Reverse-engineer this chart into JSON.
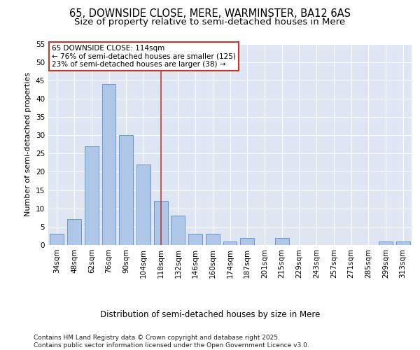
{
  "title1": "65, DOWNSIDE CLOSE, MERE, WARMINSTER, BA12 6AS",
  "title2": "Size of property relative to semi-detached houses in Mere",
  "xlabel": "Distribution of semi-detached houses by size in Mere",
  "ylabel": "Number of semi-detached properties",
  "categories": [
    "34sqm",
    "48sqm",
    "62sqm",
    "76sqm",
    "90sqm",
    "104sqm",
    "118sqm",
    "132sqm",
    "146sqm",
    "160sqm",
    "174sqm",
    "187sqm",
    "201sqm",
    "215sqm",
    "229sqm",
    "243sqm",
    "257sqm",
    "271sqm",
    "285sqm",
    "299sqm",
    "313sqm"
  ],
  "values": [
    3,
    7,
    27,
    44,
    30,
    22,
    12,
    8,
    3,
    3,
    1,
    2,
    0,
    2,
    0,
    0,
    0,
    0,
    0,
    1,
    1
  ],
  "bar_color": "#aec6e8",
  "bar_edge_color": "#5b8dc8",
  "bar_width": 0.8,
  "vline_x": 6,
  "vline_color": "#c0392b",
  "annotation_title": "65 DOWNSIDE CLOSE: 114sqm",
  "annotation_line1": "← 76% of semi-detached houses are smaller (125)",
  "annotation_line2": "23% of semi-detached houses are larger (38) →",
  "annotation_box_color": "#ffffff",
  "annotation_box_edge": "#c0392b",
  "ylim": [
    0,
    55
  ],
  "yticks": [
    0,
    5,
    10,
    15,
    20,
    25,
    30,
    35,
    40,
    45,
    50,
    55
  ],
  "bg_color": "#dde6f2",
  "footer": "Contains HM Land Registry data © Crown copyright and database right 2025.\nContains public sector information licensed under the Open Government Licence v3.0.",
  "title1_fontsize": 10.5,
  "title2_fontsize": 9.5,
  "xlabel_fontsize": 8.5,
  "ylabel_fontsize": 8,
  "tick_fontsize": 7.5,
  "annotation_fontsize": 7.5,
  "footer_fontsize": 6.5
}
